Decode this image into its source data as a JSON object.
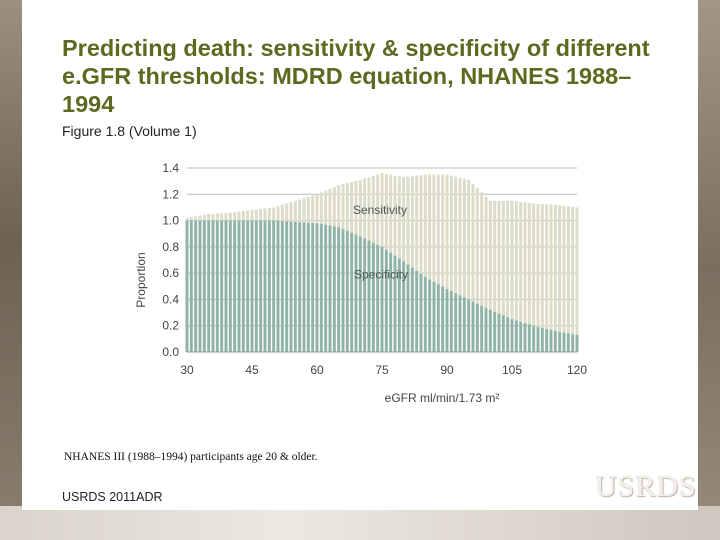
{
  "slide": {
    "title": "Predicting death: sensitivity & specificity of different e.GFR thresholds: MDRD equation, NHANES 1988–1994",
    "subtitle": "Figure 1.8 (Volume 1)",
    "footnote": "NHANES III (1988–1994) participants age 20 & older.",
    "source": "USRDS 2011ADR",
    "logo": "USRDS"
  },
  "colors": {
    "title": "#5a6a1e",
    "specificity": "#8fb4a6",
    "sensitivity": "#dcdcc9",
    "gridline": "#bdbdbd",
    "axis_text": "#444444"
  },
  "chart_data": {
    "type": "area",
    "stacked": true,
    "title": "",
    "xlabel": "eGFR ml/min/1.73 m²",
    "ylabel": "Proportion",
    "xlim": [
      30,
      120
    ],
    "ylim": [
      0,
      1.4
    ],
    "xticks": [
      "30",
      "45",
      "60",
      "75",
      "90",
      "105",
      "120"
    ],
    "yticks": [
      "0.0",
      "0.2",
      "0.4",
      "0.6",
      "0.8",
      "1.0",
      "1.2",
      "1.4"
    ],
    "annotations": [
      "Sensitivity",
      "Specificity"
    ],
    "x": [
      30,
      35,
      40,
      45,
      50,
      55,
      60,
      65,
      70,
      75,
      80,
      85,
      90,
      95,
      100,
      105,
      110,
      115,
      120
    ],
    "series": [
      {
        "name": "Specificity",
        "values": [
          1.0,
          1.0,
          1.0,
          1.0,
          1.0,
          0.99,
          0.98,
          0.95,
          0.88,
          0.8,
          0.69,
          0.57,
          0.48,
          0.4,
          0.32,
          0.25,
          0.2,
          0.16,
          0.13
        ]
      },
      {
        "name": "Sensitivity",
        "values": [
          0.02,
          0.05,
          0.06,
          0.08,
          0.1,
          0.16,
          0.22,
          0.32,
          0.43,
          0.56,
          0.64,
          0.78,
          0.87,
          0.91,
          0.83,
          0.9,
          0.93,
          0.96,
          0.97
        ]
      }
    ]
  }
}
